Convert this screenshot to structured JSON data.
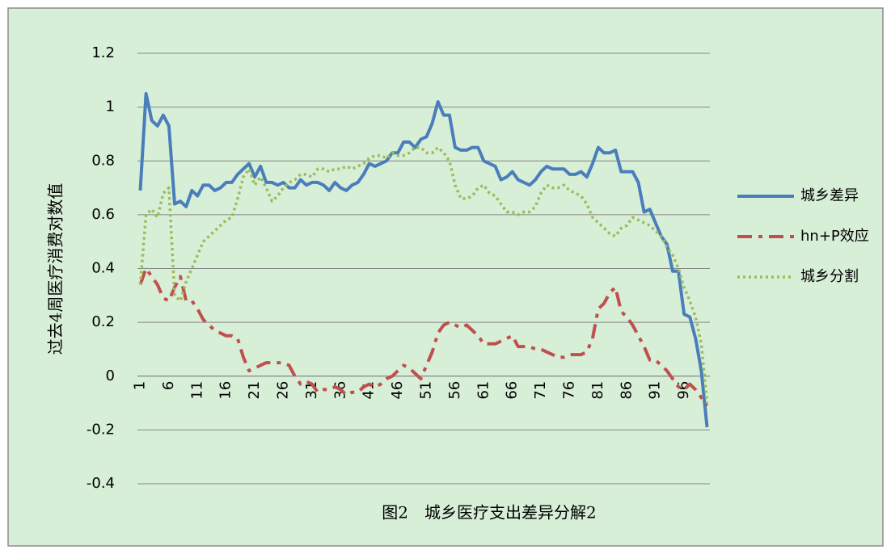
{
  "chart_data": {
    "type": "line",
    "title": "图2　城乡医疗支出差异分解2",
    "y_label": "过去4周医疗消费对数值",
    "categories": [
      1,
      null,
      null,
      null,
      null,
      6,
      null,
      null,
      null,
      null,
      11,
      null,
      null,
      null,
      null,
      16,
      null,
      null,
      null,
      null,
      21,
      null,
      null,
      null,
      null,
      26,
      null,
      null,
      null,
      null,
      31,
      null,
      null,
      null,
      null,
      36,
      null,
      null,
      null,
      null,
      41,
      null,
      null,
      null,
      null,
      46,
      null,
      null,
      null,
      null,
      51,
      null,
      null,
      null,
      null,
      56,
      null,
      null,
      null,
      null,
      61,
      null,
      null,
      null,
      null,
      66,
      null,
      null,
      null,
      null,
      71,
      null,
      null,
      null,
      null,
      76,
      null,
      null,
      null,
      null,
      81,
      null,
      null,
      null,
      null,
      86,
      null,
      null,
      null,
      null,
      91,
      null,
      null,
      null,
      null,
      96,
      null,
      null,
      null,
      null
    ],
    "ylim": [
      -0.4,
      1.2
    ],
    "yticks": [
      -0.4,
      -0.2,
      0,
      0.2,
      0.4,
      0.6,
      0.8,
      1,
      1.2
    ],
    "grid": true,
    "legend": "right",
    "series": [
      {
        "name": "城乡差异",
        "color": "#4a7ebb",
        "style": "solid",
        "values": [
          0.69,
          1.05,
          0.95,
          0.93,
          0.97,
          0.93,
          0.64,
          0.65,
          0.63,
          0.69,
          0.67,
          0.71,
          0.71,
          0.69,
          0.7,
          0.72,
          0.72,
          0.75,
          0.77,
          0.79,
          0.74,
          0.78,
          0.72,
          0.72,
          0.71,
          0.72,
          0.7,
          0.7,
          0.73,
          0.71,
          0.72,
          0.72,
          0.71,
          0.69,
          0.72,
          0.7,
          0.69,
          0.71,
          0.72,
          0.75,
          0.79,
          0.78,
          0.79,
          0.8,
          0.83,
          0.83,
          0.87,
          0.87,
          0.85,
          0.88,
          0.89,
          0.94,
          1.02,
          0.97,
          0.97,
          0.85,
          0.84,
          0.84,
          0.85,
          0.85,
          0.8,
          0.79,
          0.78,
          0.73,
          0.74,
          0.76,
          0.73,
          0.72,
          0.71,
          0.73,
          0.76,
          0.78,
          0.77,
          0.77,
          0.77,
          0.75,
          0.75,
          0.76,
          0.74,
          0.79,
          0.85,
          0.83,
          0.83,
          0.84,
          0.76,
          0.76,
          0.76,
          0.72,
          0.61,
          0.62,
          0.57,
          0.52,
          0.49,
          0.39,
          0.39,
          0.23,
          0.22,
          0.14,
          0.02,
          -0.19
        ]
      },
      {
        "name": "hn+P效应",
        "color": "#c0504d",
        "style": "dashdot",
        "values": [
          0.34,
          0.4,
          0.37,
          0.34,
          0.29,
          0.28,
          0.33,
          0.37,
          0.28,
          0.28,
          0.25,
          0.21,
          0.19,
          0.17,
          0.16,
          0.15,
          0.15,
          0.14,
          0.07,
          0.02,
          0.03,
          0.04,
          0.05,
          0.05,
          0.05,
          0.05,
          0.04,
          0.0,
          -0.03,
          -0.02,
          -0.03,
          -0.06,
          -0.05,
          -0.05,
          -0.04,
          -0.05,
          -0.07,
          -0.06,
          -0.06,
          -0.04,
          -0.03,
          -0.04,
          -0.03,
          -0.01,
          0.0,
          0.02,
          0.04,
          0.03,
          0.01,
          -0.01,
          0.04,
          0.09,
          0.16,
          0.19,
          0.2,
          0.19,
          0.18,
          0.19,
          0.17,
          0.15,
          0.12,
          0.12,
          0.12,
          0.13,
          0.14,
          0.15,
          0.11,
          0.11,
          0.11,
          0.1,
          0.1,
          0.09,
          0.08,
          0.07,
          0.07,
          0.08,
          0.08,
          0.08,
          0.09,
          0.14,
          0.25,
          0.27,
          0.31,
          0.33,
          0.24,
          0.22,
          0.19,
          0.15,
          0.11,
          0.06,
          0.06,
          0.04,
          0.02,
          -0.01,
          -0.04,
          -0.05,
          -0.03,
          -0.05,
          -0.08,
          -0.11
        ]
      },
      {
        "name": "城乡分割",
        "color": "#9bbb59",
        "style": "dotted",
        "values": [
          0.34,
          0.6,
          0.62,
          0.59,
          0.68,
          0.7,
          0.3,
          0.28,
          0.35,
          0.4,
          0.45,
          0.5,
          0.52,
          0.54,
          0.56,
          0.58,
          0.59,
          0.66,
          0.74,
          0.77,
          0.71,
          0.74,
          0.7,
          0.65,
          0.67,
          0.7,
          0.72,
          0.73,
          0.75,
          0.75,
          0.74,
          0.77,
          0.77,
          0.76,
          0.77,
          0.77,
          0.78,
          0.77,
          0.78,
          0.79,
          0.81,
          0.82,
          0.82,
          0.81,
          0.83,
          0.82,
          0.82,
          0.83,
          0.85,
          0.85,
          0.83,
          0.83,
          0.85,
          0.83,
          0.8,
          0.71,
          0.66,
          0.66,
          0.67,
          0.7,
          0.71,
          0.68,
          0.67,
          0.64,
          0.61,
          0.61,
          0.6,
          0.61,
          0.61,
          0.63,
          0.68,
          0.71,
          0.7,
          0.7,
          0.71,
          0.69,
          0.68,
          0.67,
          0.64,
          0.59,
          0.57,
          0.55,
          0.53,
          0.52,
          0.55,
          0.56,
          0.59,
          0.58,
          0.57,
          0.56,
          0.54,
          0.52,
          0.48,
          0.45,
          0.4,
          0.33,
          0.28,
          0.22,
          0.12,
          -0.1
        ]
      }
    ]
  }
}
